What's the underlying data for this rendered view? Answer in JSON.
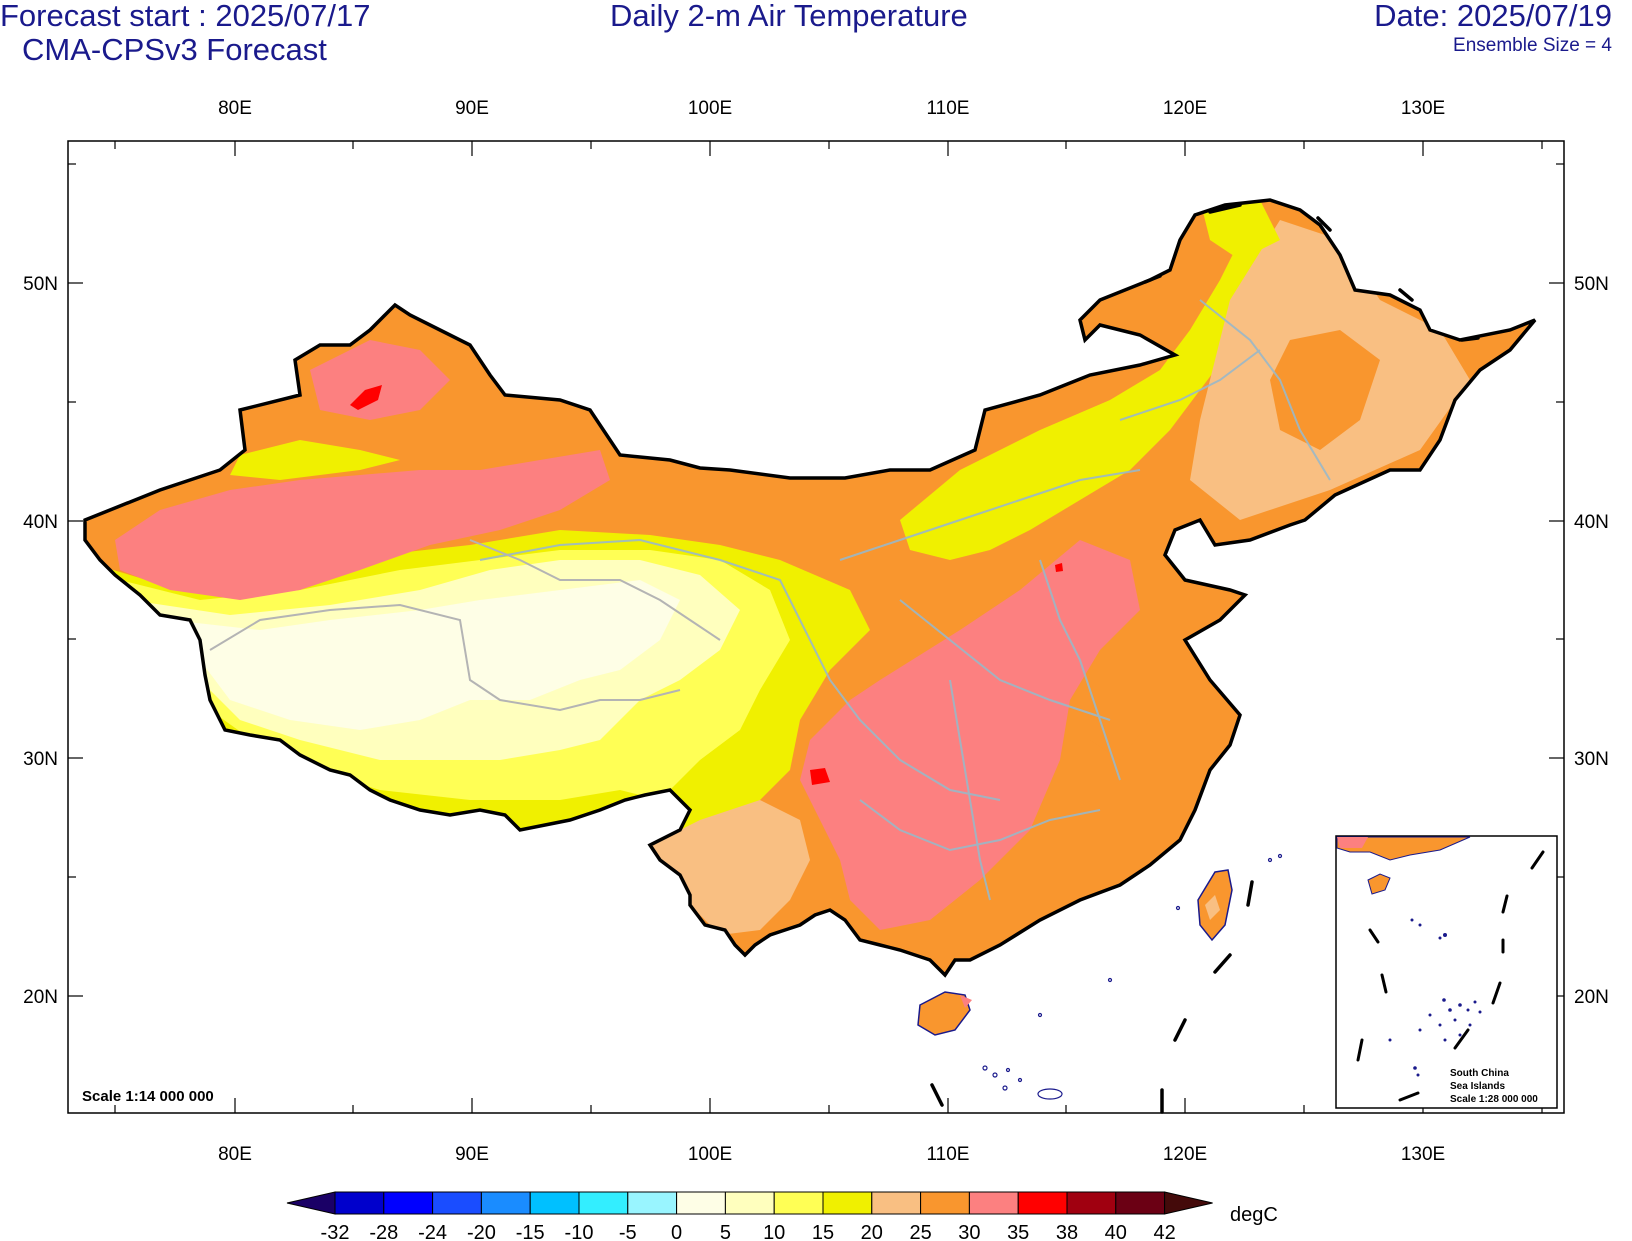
{
  "header": {
    "forecast_start": "Forecast start : 2025/07/17",
    "model": "CMA-CPSv3 Forecast",
    "title": "Daily 2-m Air Temperature",
    "date": "Date: 2025/07/19",
    "ensemble": "Ensemble Size = 4"
  },
  "map": {
    "lon_ticks": [
      "80E",
      "90E",
      "100E",
      "110E",
      "120E",
      "130E"
    ],
    "lat_ticks": [
      "50N",
      "40N",
      "30N",
      "20N"
    ],
    "scale_label": "Scale 1:14 000 000",
    "inset": {
      "line1": "South China",
      "line2": "Sea Islands",
      "line3": "Scale 1:28 000 000"
    }
  },
  "colorbar": {
    "unit": "degC",
    "labels": [
      "-32",
      "-28",
      "-24",
      "-20",
      "-15",
      "-10",
      "-5",
      "0",
      "5",
      "10",
      "15",
      "20",
      "25",
      "30",
      "35",
      "38",
      "40",
      "42"
    ],
    "colors": [
      "#1a0066",
      "#0000cc",
      "#0000ff",
      "#1a4dff",
      "#1a8cff",
      "#00c0ff",
      "#33eeff",
      "#99f5ff",
      "#fefee6",
      "#ffffbe",
      "#ffff55",
      "#f0f000",
      "#f9bf82",
      "#f9962e",
      "#fc8080",
      "#ff0000",
      "#a00010",
      "#6b0014",
      "#440a0a"
    ]
  }
}
